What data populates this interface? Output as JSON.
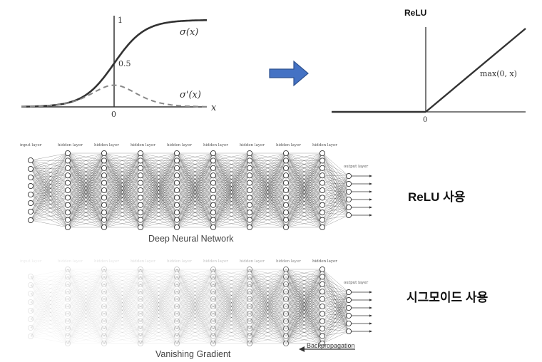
{
  "sigmoid_plot": {
    "y_tick_top": "1",
    "y_tick_mid": "0.5",
    "x_tick_origin": "0",
    "x_axis_label": "x",
    "curve_label": "σ(x)",
    "derivative_label": "σ'(x)"
  },
  "relu_plot": {
    "title": "ReLU",
    "x_tick_origin": "0",
    "curve_label": "max(0, x)"
  },
  "arrow": {
    "color": "#4472c4"
  },
  "net_top": {
    "title": "Deep Neural Network",
    "caption": "ReLU 사용",
    "input_label": "input layer",
    "hidden_label": "hidden layer",
    "output_label": "output layer"
  },
  "net_bottom": {
    "title": "Vanishing Gradient",
    "caption": "시그모이드 사용",
    "backprop_label": "Backpropagation",
    "input_label": "input layer",
    "hidden_label": "hidden layer",
    "output_label": "output layer"
  }
}
